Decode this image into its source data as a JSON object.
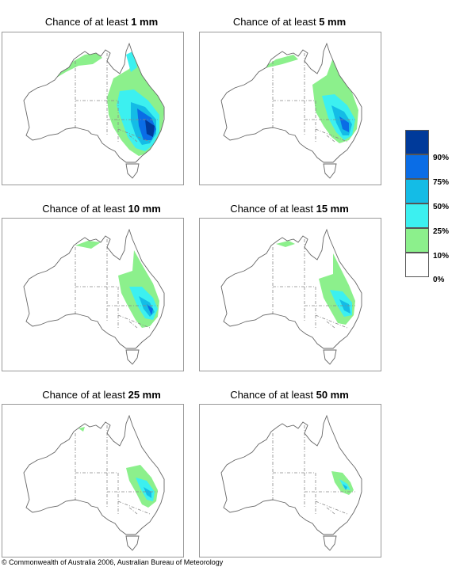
{
  "panels": [
    {
      "title_prefix": "Chance of at least ",
      "amount": "1 mm"
    },
    {
      "title_prefix": "Chance of at least ",
      "amount": "5 mm"
    },
    {
      "title_prefix": "Chance of at least ",
      "amount": "10 mm"
    },
    {
      "title_prefix": "Chance of at least ",
      "amount": "15 mm"
    },
    {
      "title_prefix": "Chance of at least ",
      "amount": "25 mm"
    },
    {
      "title_prefix": "Chance of at least ",
      "amount": "50 mm"
    }
  ],
  "legend": {
    "labels": [
      "90%",
      "75%",
      "50%",
      "25%",
      "10%",
      "0%"
    ],
    "colors": [
      "#003a9a",
      "#0a6de6",
      "#14bce6",
      "#3cf0f0",
      "#8cf08c",
      "#ffffff"
    ]
  },
  "colors": {
    "land_outline": "#666666",
    "state_border": "#888888",
    "band_10": "#8cf08c",
    "band_25": "#3cf0f0",
    "band_50": "#14bce6",
    "band_75": "#0a6de6",
    "band_90": "#003a9a"
  },
  "copyright": "© Commonwealth of Australia 2006, Australian Bureau of Meteorology"
}
